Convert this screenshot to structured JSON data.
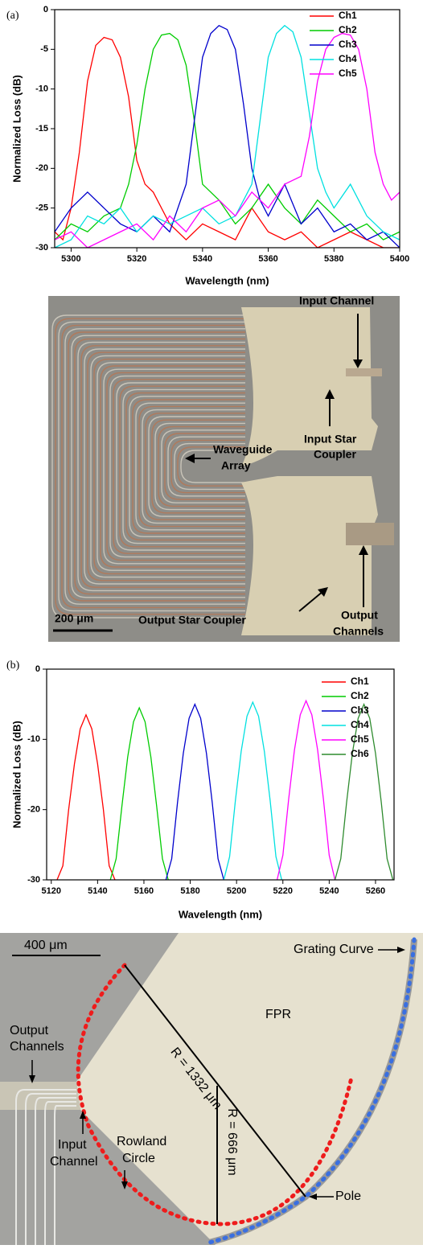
{
  "panel_labels": [
    "(a)",
    "(b)"
  ],
  "chart_data": [
    {
      "type": "line",
      "x_label": "Wavelength (nm)",
      "y_label": "Normalized Loss (dB)",
      "xlim": [
        5295,
        5400
      ],
      "xticks": [
        5300,
        5320,
        5340,
        5360,
        5380,
        5400
      ],
      "ylim": [
        -30,
        0
      ],
      "yticks": [
        -30,
        -25,
        -20,
        -15,
        -10,
        -5,
        0
      ],
      "legend": "upper right",
      "series": [
        {
          "name": "Ch1",
          "color": "#ff0000",
          "x": [
            5295,
            5297.5,
            5300,
            5302.5,
            5305,
            5307.5,
            5310,
            5312.5,
            5315,
            5317.5,
            5320,
            5322.5,
            5325,
            5330,
            5335,
            5340,
            5345,
            5350,
            5355,
            5360,
            5365,
            5370,
            5375,
            5380,
            5385,
            5390,
            5395,
            5400
          ],
          "values": [
            -28,
            -29,
            -25,
            -18,
            -9,
            -4.5,
            -3.5,
            -3.8,
            -6,
            -11,
            -19,
            -22,
            -23,
            -27,
            -29,
            -27,
            -28,
            -29,
            -25,
            -28,
            -29,
            -28,
            -30,
            -29,
            -28,
            -29,
            -30,
            -30
          ]
        },
        {
          "name": "Ch2",
          "color": "#00cc00",
          "x": [
            5295,
            5300,
            5305,
            5310,
            5315,
            5317.5,
            5320,
            5322.5,
            5325,
            5327.5,
            5330,
            5332.5,
            5335,
            5337.5,
            5340,
            5345,
            5350,
            5355,
            5360,
            5365,
            5370,
            5375,
            5380,
            5385,
            5390,
            5395,
            5400
          ],
          "values": [
            -29,
            -27,
            -28,
            -26,
            -25,
            -22,
            -17,
            -10,
            -5,
            -3.2,
            -3,
            -3.8,
            -7,
            -14,
            -22,
            -24,
            -27,
            -25,
            -22,
            -25,
            -27,
            -24,
            -26,
            -28,
            -27,
            -29,
            -28
          ]
        },
        {
          "name": "Ch3",
          "color": "#0000cc",
          "x": [
            5295,
            5300,
            5305,
            5310,
            5315,
            5320,
            5325,
            5330,
            5335,
            5337.5,
            5340,
            5342.5,
            5345,
            5347.5,
            5350,
            5352.5,
            5355,
            5357.5,
            5360,
            5365,
            5370,
            5375,
            5380,
            5385,
            5390,
            5395,
            5400
          ],
          "values": [
            -28,
            -25,
            -23,
            -25,
            -27,
            -28,
            -26,
            -28,
            -22,
            -14,
            -6,
            -3,
            -2,
            -2.5,
            -5,
            -12,
            -20,
            -24,
            -26,
            -22,
            -27,
            -25,
            -28,
            -27,
            -29,
            -28,
            -30
          ]
        },
        {
          "name": "Ch4",
          "color": "#00e0e0",
          "x": [
            5295,
            5300,
            5305,
            5310,
            5315,
            5320,
            5325,
            5330,
            5335,
            5340,
            5345,
            5350,
            5355,
            5357.5,
            5360,
            5362.5,
            5365,
            5367.5,
            5370,
            5372.5,
            5375,
            5377.5,
            5380,
            5385,
            5390,
            5395,
            5400
          ],
          "values": [
            -30,
            -29,
            -26,
            -27,
            -25,
            -28,
            -26,
            -27,
            -26,
            -25,
            -27,
            -26,
            -22,
            -14,
            -6,
            -3,
            -2,
            -2.8,
            -6,
            -13,
            -20,
            -23,
            -25,
            -22,
            -26,
            -28,
            -29
          ]
        },
        {
          "name": "Ch5",
          "color": "#ff00ff",
          "x": [
            5295,
            5300,
            5305,
            5310,
            5315,
            5320,
            5325,
            5330,
            5335,
            5340,
            5345,
            5350,
            5355,
            5360,
            5365,
            5370,
            5372.5,
            5375,
            5377.5,
            5380,
            5382.5,
            5385,
            5387.5,
            5390,
            5392.5,
            5395,
            5397.5,
            5400
          ],
          "values": [
            -29,
            -28,
            -30,
            -29,
            -28,
            -27,
            -29,
            -26,
            -28,
            -25,
            -24,
            -26,
            -23,
            -25,
            -22,
            -21,
            -16,
            -9,
            -5,
            -3.5,
            -3,
            -3.2,
            -5,
            -10,
            -18,
            -22,
            -24,
            -23
          ]
        }
      ]
    },
    {
      "type": "line",
      "x_label": "Wavelength (nm)",
      "y_label": "Normalized Loss (dB)",
      "xlim": [
        5118,
        5268
      ],
      "xticks": [
        5120,
        5140,
        5160,
        5180,
        5200,
        5220,
        5240,
        5260
      ],
      "ylim": [
        -30,
        0
      ],
      "yticks": [
        -30,
        -20,
        -10,
        0
      ],
      "legend": "upper right",
      "series": [
        {
          "name": "Ch1",
          "color": "#ff0000",
          "x": [
            5122.5,
            5125,
            5127.5,
            5130,
            5132.5,
            5135,
            5137.5,
            5140,
            5142.5,
            5145,
            5147.5
          ],
          "values": [
            -30,
            -28,
            -20,
            -13.5,
            -8.5,
            -6.5,
            -8.5,
            -13.5,
            -20,
            -28,
            -30
          ]
        },
        {
          "name": "Ch2",
          "color": "#00cc00",
          "x": [
            5145.5,
            5148,
            5150.5,
            5153,
            5155.5,
            5158,
            5160.5,
            5163,
            5165.5,
            5168,
            5170.5
          ],
          "values": [
            -30,
            -27,
            -19.5,
            -12.5,
            -7.5,
            -5.5,
            -7.5,
            -12.5,
            -19.5,
            -27,
            -30
          ]
        },
        {
          "name": "Ch3",
          "color": "#0000cc",
          "x": [
            5169.5,
            5172,
            5174.5,
            5177,
            5179.5,
            5182,
            5184.5,
            5187,
            5189.5,
            5192,
            5194.5
          ],
          "values": [
            -30,
            -27,
            -19,
            -12,
            -7,
            -5,
            -7,
            -12,
            -19,
            -27,
            -30
          ]
        },
        {
          "name": "Ch4",
          "color": "#00e0e0",
          "x": [
            5194.5,
            5197,
            5199.5,
            5202,
            5204.5,
            5207,
            5209.5,
            5212,
            5214.5,
            5217,
            5219.5
          ],
          "values": [
            -30,
            -26.7,
            -18.7,
            -11.7,
            -6.7,
            -4.7,
            -6.7,
            -11.7,
            -18.7,
            -26.7,
            -30
          ]
        },
        {
          "name": "Ch5",
          "color": "#ff00ff",
          "x": [
            5217.5,
            5220,
            5222.5,
            5225,
            5227.5,
            5230,
            5232.5,
            5235,
            5237.5,
            5240,
            5242.5
          ],
          "values": [
            -30,
            -26.5,
            -18.5,
            -11.5,
            -6.5,
            -4.5,
            -6.5,
            -11.5,
            -18.5,
            -26.5,
            -30
          ]
        },
        {
          "name": "Ch6",
          "color": "#2e8b2e",
          "x": [
            5242.5,
            5245,
            5247.5,
            5250,
            5252.5,
            5255,
            5257.5,
            5260,
            5262.5,
            5265,
            5267.5
          ],
          "values": [
            -30,
            -27,
            -19,
            -12,
            -7,
            -5,
            -7,
            -12,
            -19,
            -27,
            -30
          ]
        }
      ]
    }
  ],
  "micrograph_1": {
    "input_channel": "Input Channel",
    "input_star_coupler": [
      "Input Star",
      "Coupler"
    ],
    "waveguide_array": [
      "Waveguide",
      "Array"
    ],
    "output_star_coupler": "Output Star Coupler",
    "output_channels": [
      "Output",
      "Channels"
    ],
    "scale_bar": "200 μm"
  },
  "micrograph_2": {
    "scale_bar": "400 μm",
    "grating_curve": "Grating Curve",
    "fpr": "FPR",
    "radius_large": "R = 1332 μm",
    "radius_small": "R = 666 μm",
    "output_channels": [
      "Output",
      "Channels"
    ],
    "rowland_circle": [
      "Rowland",
      "Circle"
    ],
    "input_channel": [
      "Input",
      "Channel"
    ],
    "pole": "Pole"
  }
}
